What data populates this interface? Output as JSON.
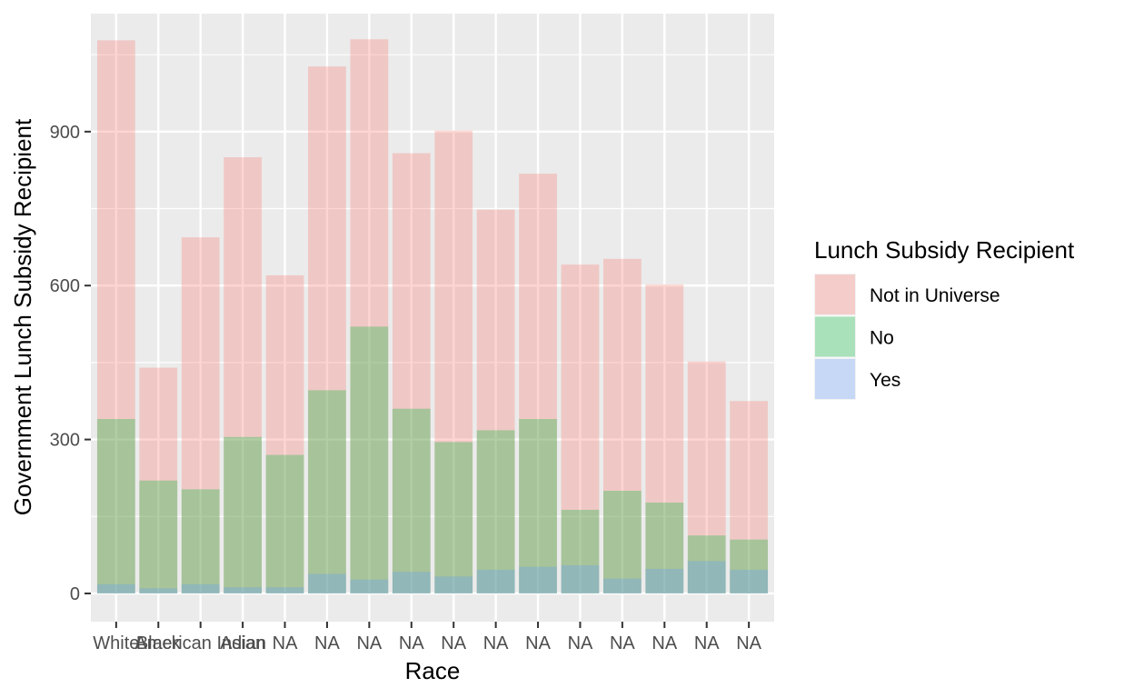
{
  "chart_data": {
    "type": "bar",
    "overlay": "identity",
    "xlabel": "Race",
    "ylabel": "Government Lunch Subsidy Recipient",
    "categories": [
      "White",
      "Black",
      "American Indian",
      "Asian",
      "NA",
      "NA",
      "NA",
      "NA",
      "NA",
      "NA",
      "NA",
      "NA",
      "NA",
      "NA",
      "NA",
      "NA"
    ],
    "ylim": [
      -55,
      1130
    ],
    "yticks": [
      0,
      300,
      600,
      900
    ],
    "grid": true,
    "legend": {
      "title": "Lunch Subsidy Recipient",
      "placement": "right"
    },
    "series": [
      {
        "name": "Not in Universe",
        "color": "#F8766D",
        "values": [
          1078,
          440,
          694,
          850,
          620,
          1027,
          1080,
          858,
          902,
          748,
          818,
          641,
          652,
          602,
          452,
          375
        ]
      },
      {
        "name": "No",
        "color": "#00BA38",
        "values": [
          340,
          220,
          203,
          305,
          270,
          396,
          520,
          360,
          295,
          318,
          340,
          163,
          200,
          177,
          113,
          105
        ]
      },
      {
        "name": "Yes",
        "color": "#619CFF",
        "values": [
          18,
          10,
          18,
          12,
          12,
          38,
          27,
          42,
          33,
          46,
          52,
          55,
          29,
          48,
          63,
          46
        ]
      }
    ]
  }
}
